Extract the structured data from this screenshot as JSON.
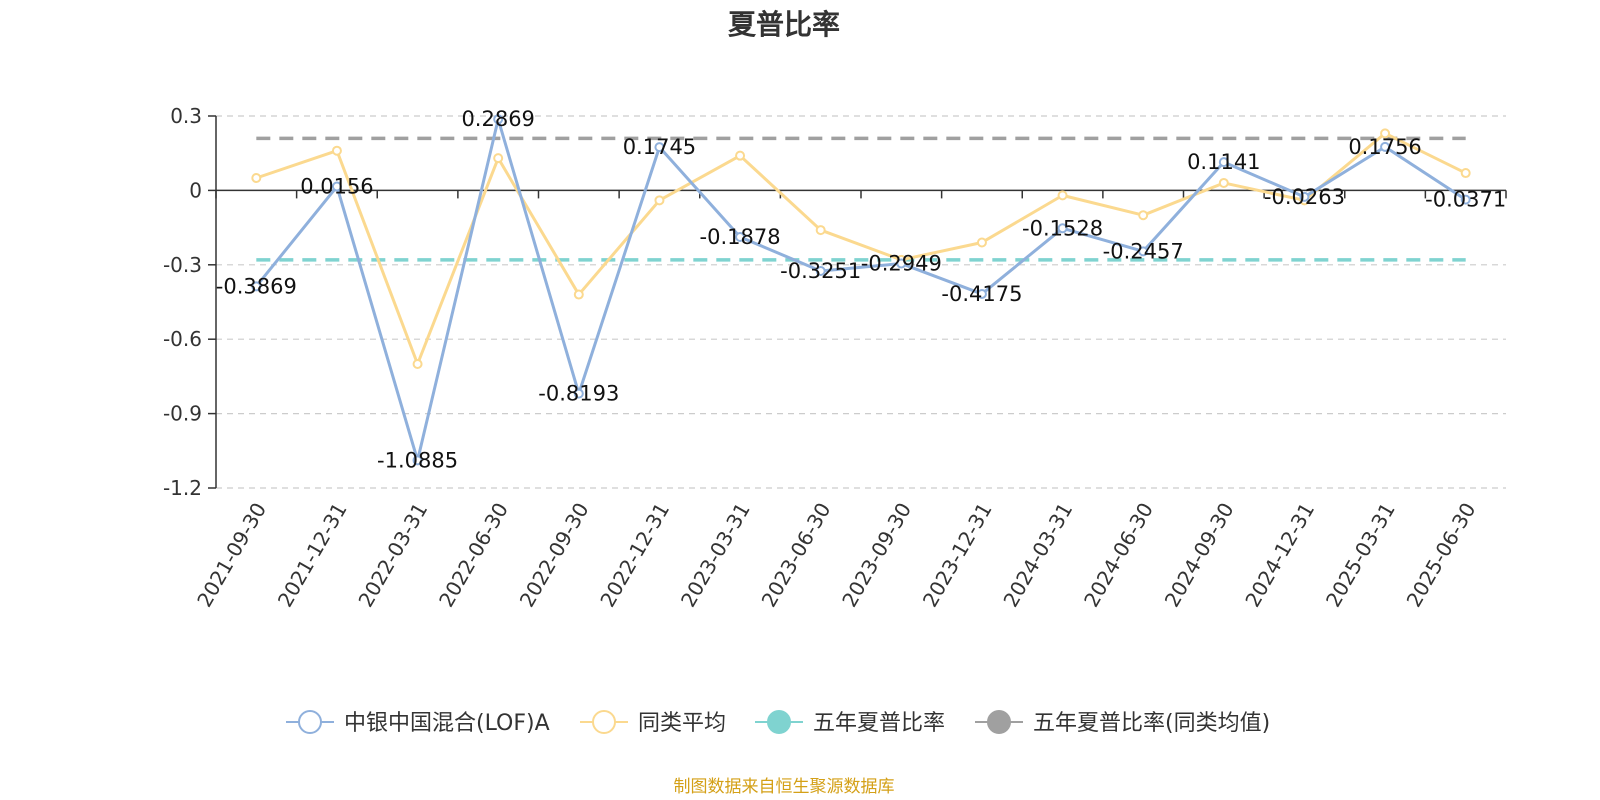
{
  "chart_data": {
    "type": "line",
    "title": "夏普比率",
    "x": [
      "2021-09-30",
      "2021-12-31",
      "2022-03-31",
      "2022-06-30",
      "2022-09-30",
      "2022-12-31",
      "2023-03-31",
      "2023-06-30",
      "2023-09-30",
      "2023-12-31",
      "2024-03-31",
      "2024-06-30",
      "2024-09-30",
      "2024-12-31",
      "2025-03-31",
      "2025-06-30"
    ],
    "ylim": [
      -1.2,
      0.3
    ],
    "yticks": [
      "0.3",
      "0",
      "-0.3",
      "-0.6",
      "-0.9",
      "-1.2"
    ],
    "grid": true,
    "legend_position": "bottom",
    "series": [
      {
        "name": "中银中国混合(LOF)A",
        "color": "#8fb0dc",
        "values": [
          -0.3869,
          0.0156,
          -1.0885,
          0.2869,
          -0.8193,
          0.1745,
          -0.1878,
          -0.3251,
          -0.2949,
          -0.4175,
          -0.1528,
          -0.2457,
          0.1141,
          -0.0263,
          0.1756,
          -0.0371
        ],
        "labels": [
          "-0.3869",
          "0.0156",
          "-1.0885",
          "0.2869",
          "-0.8193",
          "0.1745",
          "-0.1878",
          "-0.3251",
          "-0.2949",
          "-0.4175",
          "-0.1528",
          "-0.2457",
          "0.1141",
          "-0.0263",
          "0.1756",
          "-0.0371"
        ]
      },
      {
        "name": "同类平均",
        "color": "#fbd98f",
        "values": [
          0.05,
          0.16,
          -0.7,
          0.13,
          -0.42,
          -0.04,
          0.14,
          -0.16,
          -0.28,
          -0.21,
          -0.02,
          -0.1,
          0.03,
          -0.04,
          0.23,
          0.07
        ]
      },
      {
        "name": "五年夏普比率",
        "color": "#7fd3d0",
        "dashed": true,
        "value": -0.28
      },
      {
        "name": "五年夏普比率(同类均值)",
        "color": "#a0a0a0",
        "dashed": true,
        "value": 0.21
      }
    ]
  },
  "footer": {
    "source": "制图数据来自恒生聚源数据库",
    "source_color": "#d4a017"
  }
}
